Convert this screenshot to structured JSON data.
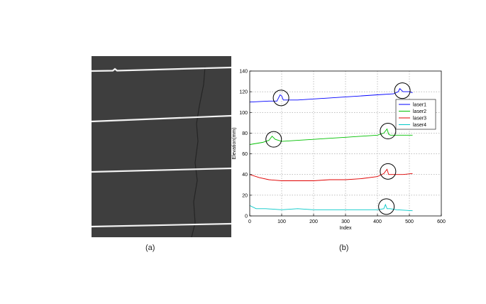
{
  "figure": {
    "label_a": "(a)",
    "label_b": "(b)"
  },
  "photo": {
    "background": "#3b3b3b",
    "laser_line_color": "#f2f2f2",
    "laser_line_count": 4
  },
  "chart_data": {
    "type": "line",
    "xlabel": "Index",
    "ylabel": "Elevation(mm)",
    "xlim": [
      0,
      600
    ],
    "ylim": [
      0,
      140
    ],
    "xticks": [
      0,
      100,
      200,
      300,
      400,
      500,
      600
    ],
    "yticks": [
      0,
      20,
      40,
      60,
      80,
      100,
      120,
      140
    ],
    "grid": true,
    "legend_position": "top-right",
    "series": [
      {
        "name": "laser1",
        "color": "#0000ff",
        "x": [
          0,
          60,
          85,
          95,
          100,
          105,
          115,
          150,
          200,
          250,
          300,
          350,
          400,
          450,
          465,
          470,
          480,
          500,
          510
        ],
        "y": [
          110,
          111,
          111,
          117,
          116,
          112,
          112,
          112,
          113,
          114,
          115,
          116,
          117,
          118,
          120,
          123,
          120,
          120,
          119
        ]
      },
      {
        "name": "laser2",
        "color": "#00c000",
        "x": [
          0,
          40,
          60,
          70,
          80,
          90,
          100,
          150,
          200,
          250,
          300,
          350,
          400,
          420,
          430,
          435,
          440,
          460,
          510
        ],
        "y": [
          69,
          71,
          73,
          77,
          74,
          73,
          72,
          73,
          74,
          75,
          76,
          77,
          78,
          80,
          84,
          79,
          78,
          78,
          78
        ]
      },
      {
        "name": "laser3",
        "color": "#e00000",
        "x": [
          0,
          30,
          60,
          100,
          150,
          200,
          250,
          300,
          350,
          400,
          420,
          430,
          435,
          440,
          460,
          480,
          510
        ],
        "y": [
          40,
          37,
          35,
          34,
          34,
          34,
          35,
          35,
          36,
          38,
          41,
          45,
          40,
          40,
          40,
          40,
          41
        ]
      },
      {
        "name": "laser4",
        "color": "#00c8c8",
        "x": [
          0,
          20,
          50,
          100,
          150,
          200,
          250,
          300,
          350,
          400,
          420,
          425,
          430,
          440,
          460,
          510
        ],
        "y": [
          10,
          7,
          7,
          6,
          7,
          6,
          6,
          6,
          6,
          6,
          7,
          11,
          7,
          7,
          6,
          5
        ]
      }
    ],
    "annotations": [
      {
        "shape": "ellipse",
        "x": 98,
        "y": 114
      },
      {
        "shape": "ellipse",
        "x": 478,
        "y": 121
      },
      {
        "shape": "ellipse",
        "x": 75,
        "y": 74
      },
      {
        "shape": "ellipse",
        "x": 433,
        "y": 82
      },
      {
        "shape": "ellipse",
        "x": 433,
        "y": 43
      },
      {
        "shape": "ellipse",
        "x": 428,
        "y": 9
      }
    ]
  }
}
